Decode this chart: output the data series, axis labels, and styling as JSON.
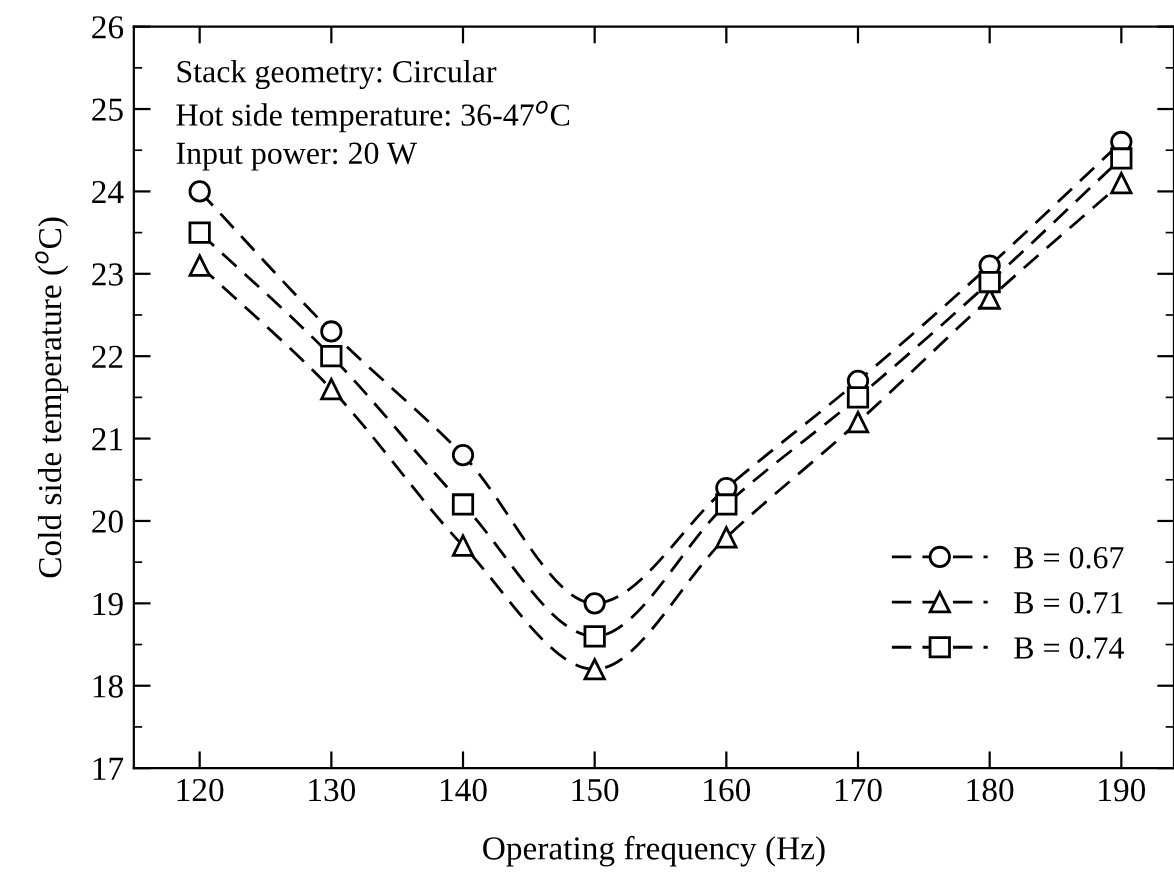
{
  "chart_data": {
    "type": "line",
    "xlabel": "Operating frequency (Hz)",
    "ylabel": "Cold side temperature ($^{o}$C)",
    "annotations": [
      "Stack geometry: Circular",
      "Hot side temperature: 36-47$^{o}$C",
      "Input power: 20 W"
    ],
    "x": [
      120,
      130,
      140,
      150,
      160,
      170,
      180,
      190
    ],
    "series": [
      {
        "name": "B = 0.67",
        "color": "#000000",
        "marker": "circle",
        "values": [
          24.0,
          22.3,
          20.8,
          19.0,
          20.4,
          21.7,
          23.1,
          24.6
        ]
      },
      {
        "name": "B = 0.71",
        "color": "#000000",
        "marker": "triangle",
        "values": [
          23.1,
          21.6,
          19.7,
          18.2,
          19.8,
          21.2,
          22.7,
          24.1
        ]
      },
      {
        "name": "B = 0.74",
        "color": "#000000",
        "marker": "square",
        "values": [
          23.5,
          22.0,
          20.2,
          18.6,
          20.2,
          21.5,
          22.9,
          24.4
        ]
      }
    ],
    "line_style": "dashed",
    "grid": false,
    "legend": "bottom right",
    "xlim": [
      115,
      194
    ],
    "ylim": [
      17,
      26
    ],
    "xticks": [
      120,
      130,
      140,
      150,
      160,
      170,
      180,
      190
    ],
    "yticks": [
      17,
      18,
      19,
      20,
      21,
      22,
      23,
      24,
      25,
      26
    ]
  }
}
